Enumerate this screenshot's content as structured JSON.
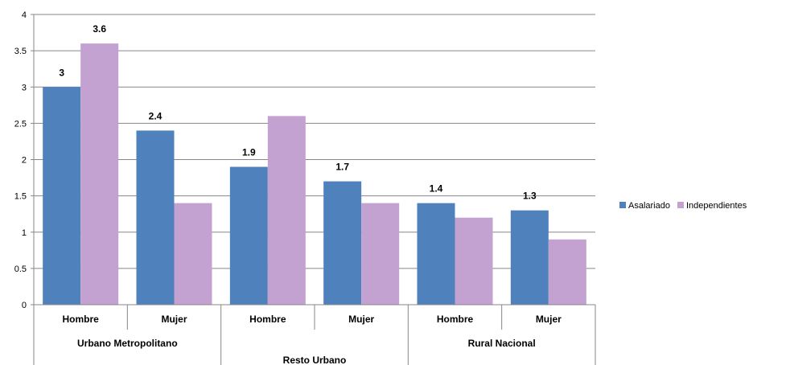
{
  "chart_data": {
    "type": "bar",
    "groups": [
      {
        "label": "Urbano Metropolitano",
        "categories": [
          "Hombre",
          "Mujer"
        ]
      },
      {
        "label": "Resto Urbano",
        "categories": [
          "Hombre",
          "Mujer"
        ]
      },
      {
        "label": "Rural Nacional",
        "categories": [
          "Hombre",
          "Mujer"
        ]
      }
    ],
    "categories": [
      "Hombre",
      "Mujer",
      "Hombre",
      "Mujer",
      "Hombre",
      "Mujer"
    ],
    "series": [
      {
        "name": "Asalariado",
        "color": "#4f81bd",
        "values": [
          3,
          2.4,
          1.9,
          1.7,
          1.4,
          1.3
        ]
      },
      {
        "name": "Independientes",
        "color": "#c3a2d2",
        "values": [
          3.6,
          1.4,
          2.6,
          1.4,
          1.2,
          0.9
        ]
      }
    ],
    "data_labels": [
      {
        "series": 0,
        "index": 0,
        "text": "3"
      },
      {
        "series": 1,
        "index": 0,
        "text": "3.6"
      },
      {
        "series": 0,
        "index": 1,
        "text": "2.4"
      },
      {
        "series": 0,
        "index": 2,
        "text": "1.9"
      },
      {
        "series": 0,
        "index": 3,
        "text": "1.7"
      },
      {
        "series": 0,
        "index": 4,
        "text": "1.4"
      },
      {
        "series": 0,
        "index": 5,
        "text": "1.3"
      }
    ],
    "ylim": [
      0,
      4
    ],
    "yticks": [
      "0",
      "0.5",
      "1",
      "1.5",
      "2",
      "2.5",
      "3",
      "3.5",
      "4"
    ],
    "title": "",
    "xlabel": "",
    "ylabel": "",
    "grid": true,
    "legend_position": "right"
  }
}
